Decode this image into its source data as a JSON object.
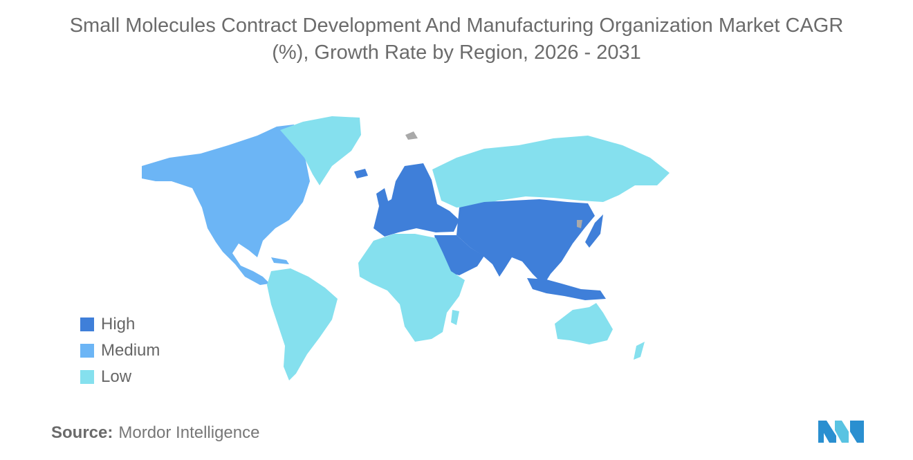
{
  "title": {
    "line1": "Small Molecules Contract Development And Manufacturing Organization Market CAGR",
    "line2": "(%), Growth Rate by Region, 2026 - 2031"
  },
  "legend": [
    {
      "label": "High",
      "color": "#3f7fd9"
    },
    {
      "label": "Medium",
      "color": "#6cb5f5"
    },
    {
      "label": "Low",
      "color": "#85e0ee"
    }
  ],
  "map_data": {
    "type": "choropleth",
    "no_data_color": "#a9a9a9",
    "regions": [
      {
        "region": "North America",
        "level": "Medium"
      },
      {
        "region": "South America",
        "level": "Low"
      },
      {
        "region": "Europe",
        "level": "High"
      },
      {
        "region": "Asia",
        "level": "High"
      },
      {
        "region": "Middle East",
        "level": "High"
      },
      {
        "region": "Africa",
        "level": "Low"
      },
      {
        "region": "Russia",
        "level": "Low"
      },
      {
        "region": "Greenland",
        "level": "Low"
      },
      {
        "region": "Australia and New Zealand",
        "level": "Low"
      }
    ]
  },
  "source": {
    "label": "Source:",
    "value": "Mordor Intelligence"
  }
}
